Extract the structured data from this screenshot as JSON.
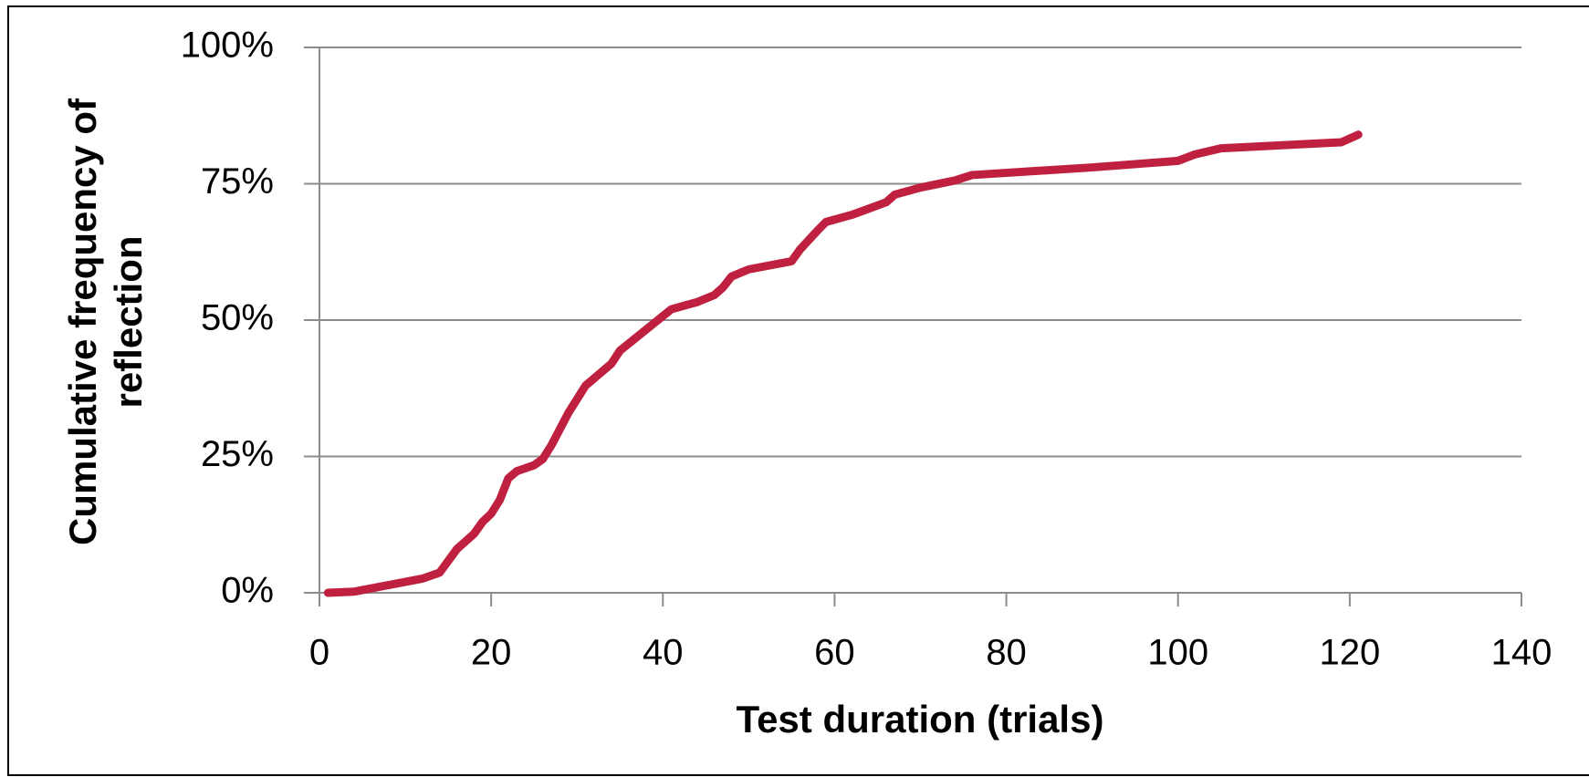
{
  "chart_data": {
    "type": "line",
    "xlabel": "Test duration (trials)",
    "ylabel": [
      "Cumulative frequency of",
      "reflection"
    ],
    "xlim": [
      0,
      140
    ],
    "xticks": [
      0,
      20,
      40,
      60,
      80,
      100,
      120,
      140
    ],
    "ylim": [
      0,
      100
    ],
    "yticks": [
      {
        "value": 0,
        "label": "0%"
      },
      {
        "value": 25,
        "label": "25%"
      },
      {
        "value": 50,
        "label": "50%"
      },
      {
        "value": 75,
        "label": "75%"
      },
      {
        "value": 100,
        "label": "100%"
      }
    ],
    "grid": true,
    "series": [
      {
        "color": "#c0203f",
        "x": [
          1,
          4,
          12,
          14,
          16,
          18,
          19,
          20,
          21,
          22,
          23,
          25,
          26,
          27,
          29,
          31,
          34,
          35,
          38,
          41,
          44,
          46,
          47,
          48,
          50,
          55,
          56,
          58,
          59,
          62,
          66,
          67,
          70,
          74,
          76,
          90,
          100,
          102,
          105,
          119,
          121
        ],
        "values": [
          0,
          0.2,
          2.6,
          3.7,
          8,
          10.8,
          13,
          14.5,
          17,
          21,
          22.3,
          23.4,
          24.5,
          27,
          33,
          38,
          42,
          44.4,
          48.2,
          52,
          53.3,
          54.6,
          56,
          58,
          59.3,
          60.8,
          63,
          66.4,
          68,
          69.3,
          71.6,
          73,
          74.3,
          75.6,
          76.6,
          78,
          79.2,
          80.4,
          81.5,
          82.6,
          84
        ]
      }
    ]
  }
}
